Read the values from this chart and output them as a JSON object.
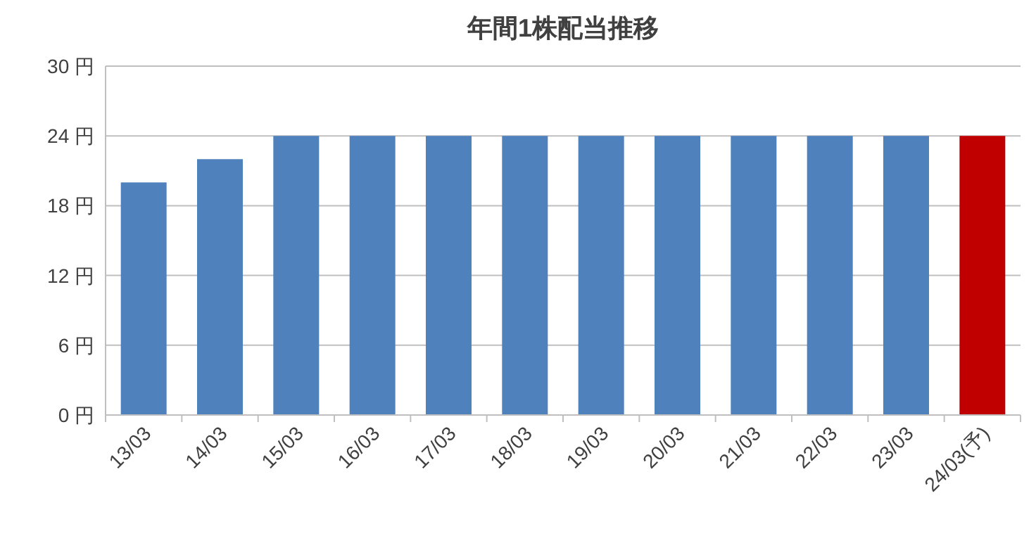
{
  "chart_data": {
    "type": "bar",
    "title": "年間1株配当推移",
    "categories": [
      "13/03",
      "14/03",
      "15/03",
      "16/03",
      "17/03",
      "18/03",
      "19/03",
      "20/03",
      "21/03",
      "22/03",
      "23/03",
      "24/03(予)"
    ],
    "values": [
      20,
      22,
      24,
      24,
      24,
      24,
      24,
      24,
      24,
      24,
      24,
      24
    ],
    "colors": [
      "#4f81bd",
      "#4f81bd",
      "#4f81bd",
      "#4f81bd",
      "#4f81bd",
      "#4f81bd",
      "#4f81bd",
      "#4f81bd",
      "#4f81bd",
      "#4f81bd",
      "#4f81bd",
      "#c00000"
    ],
    "ylim": [
      0,
      30
    ],
    "yticks": [
      {
        "value": 0,
        "label": "0 円"
      },
      {
        "value": 6,
        "label": "6 円"
      },
      {
        "value": 12,
        "label": "12 円"
      },
      {
        "value": 18,
        "label": "18 円"
      },
      {
        "value": 24,
        "label": "24 円"
      },
      {
        "value": 30,
        "label": "30 円"
      }
    ],
    "grid": "y"
  }
}
